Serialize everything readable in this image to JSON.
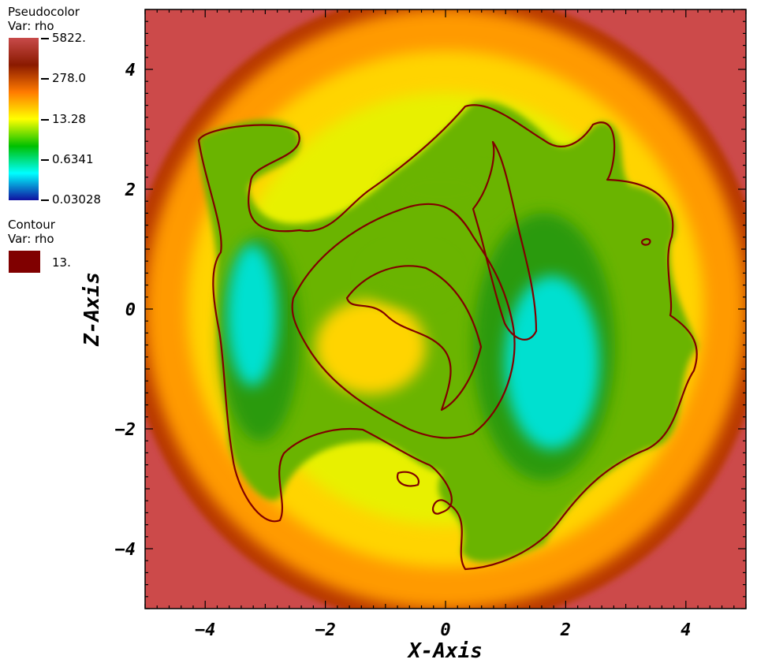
{
  "legend": {
    "pseudocolor": {
      "title": "Pseudocolor",
      "var_label": "Var: rho",
      "ticks": [
        "5822.",
        "278.0",
        "13.28",
        "0.6341",
        "0.03028"
      ],
      "colormap": [
        "#c84a4a",
        "#8a1a00",
        "#ff7a00",
        "#ffff00",
        "#00c000",
        "#00ffff",
        "#1010a0"
      ]
    },
    "contour": {
      "title": "Contour",
      "var_label": "Var: rho",
      "level_label": "13.",
      "color": "#800000"
    }
  },
  "chart_data": {
    "type": "heatmap",
    "title": "",
    "xlabel": "X-Axis",
    "ylabel": "Z-Axis",
    "xlim": [
      -5,
      5
    ],
    "ylim": [
      -5,
      5
    ],
    "x_ticks": [
      -4,
      -2,
      0,
      2,
      4
    ],
    "y_ticks": [
      -4,
      -2,
      0,
      2,
      4
    ],
    "x_tick_labels": [
      "−4",
      "−2",
      "0",
      "2",
      "4"
    ],
    "y_tick_labels": [
      "−4",
      "−2",
      "0",
      "2",
      "4"
    ],
    "variable": "rho",
    "color_range": [
      0.03028,
      5822
    ],
    "contour_level": 13,
    "contour_color": "#800000",
    "region_colors": {
      "corner": "#cc4a4a",
      "ring": "#b83800",
      "outer": "#ff9a00",
      "mid": "#ffd400",
      "low": "#e8f000",
      "green": "#6ab400",
      "deep_green": "#2a9a10",
      "cyan": "#00e0d0"
    }
  }
}
